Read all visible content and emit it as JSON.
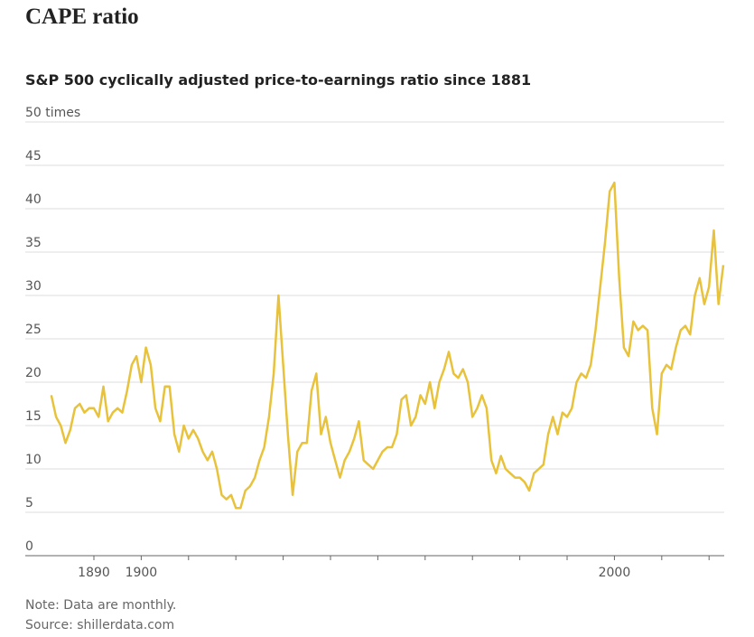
{
  "chart_data": {
    "type": "line",
    "title": "CAPE ratio",
    "subtitle": "S&P 500 cyclically adjusted price-to-earnings ratio since 1881",
    "note": "Note: Data are monthly.",
    "source": "Source: shillerdata.com",
    "x": [
      1881,
      1882,
      1883,
      1884,
      1885,
      1886,
      1887,
      1888,
      1889,
      1890,
      1891,
      1892,
      1893,
      1894,
      1895,
      1896,
      1897,
      1898,
      1899,
      1900,
      1901,
      1902,
      1903,
      1904,
      1905,
      1906,
      1907,
      1908,
      1909,
      1910,
      1911,
      1912,
      1913,
      1914,
      1915,
      1916,
      1917,
      1918,
      1919,
      1920,
      1921,
      1922,
      1923,
      1924,
      1925,
      1926,
      1927,
      1928,
      1929,
      1930,
      1931,
      1932,
      1933,
      1934,
      1935,
      1936,
      1937,
      1938,
      1939,
      1940,
      1941,
      1942,
      1943,
      1944,
      1945,
      1946,
      1947,
      1948,
      1949,
      1950,
      1951,
      1952,
      1953,
      1954,
      1955,
      1956,
      1957,
      1958,
      1959,
      1960,
      1961,
      1962,
      1963,
      1964,
      1965,
      1966,
      1967,
      1968,
      1969,
      1970,
      1971,
      1972,
      1973,
      1974,
      1975,
      1976,
      1977,
      1978,
      1979,
      1980,
      1981,
      1982,
      1983,
      1984,
      1985,
      1986,
      1987,
      1988,
      1989,
      1990,
      1991,
      1992,
      1993,
      1994,
      1995,
      1996,
      1997,
      1998,
      1999,
      2000,
      2001,
      2002,
      2003,
      2004,
      2005,
      2006,
      2007,
      2008,
      2009,
      2010,
      2011,
      2012,
      2013,
      2014,
      2015,
      2016,
      2017,
      2018,
      2019,
      2020,
      2021,
      2022,
      2023
    ],
    "series": [
      {
        "name": "CAPE ratio",
        "color": "#e8c23a",
        "values": [
          18.5,
          16,
          15,
          13,
          14.5,
          17,
          17.5,
          16.5,
          17,
          17,
          16,
          19.5,
          15.5,
          16.5,
          17,
          16.5,
          19,
          22,
          23,
          20,
          24,
          22,
          17,
          15.5,
          19.5,
          19.5,
          14,
          12,
          15,
          13.5,
          14.5,
          13.5,
          12,
          11,
          12,
          10,
          7,
          6.5,
          7,
          5.5,
          5.5,
          7.5,
          8,
          9,
          11,
          12.5,
          16,
          21,
          30,
          22,
          14,
          7,
          12,
          13,
          13,
          19,
          21,
          14,
          16,
          13,
          11,
          9,
          11,
          12,
          13.5,
          15.5,
          11,
          10.5,
          10,
          11,
          12,
          12.5,
          12.5,
          14,
          18,
          18.5,
          15,
          16,
          18.5,
          17.5,
          20,
          17,
          20,
          21.5,
          23.5,
          21,
          20.5,
          21.5,
          20,
          16,
          17,
          18.5,
          17,
          11,
          9.5,
          11.5,
          10,
          9.5,
          9,
          9,
          8.5,
          7.5,
          9.5,
          10,
          10.5,
          14,
          16,
          14,
          16.5,
          16,
          17,
          20,
          21,
          20.5,
          22,
          26,
          31,
          36,
          42,
          43,
          32,
          24,
          23,
          27,
          26,
          26.5,
          26,
          17,
          14,
          21,
          22,
          21.5,
          24,
          26,
          26.5,
          25.5,
          30,
          32,
          29,
          31,
          37.5,
          29,
          33.5
        ]
      }
    ],
    "xlim": [
      1875.5,
      2023.2
    ],
    "xticks": [
      1890,
      1900,
      2000
    ],
    "xminor_ticks": [
      1910,
      1920,
      1930,
      1940,
      1950,
      1960,
      1970,
      1980,
      1990,
      2010,
      2020
    ],
    "ylim": [
      0,
      50
    ],
    "yticks": [
      0,
      5,
      10,
      15,
      20,
      25,
      30,
      35,
      40,
      45,
      {
        "value": 50,
        "label": "50 times"
      }
    ],
    "grid": true
  }
}
